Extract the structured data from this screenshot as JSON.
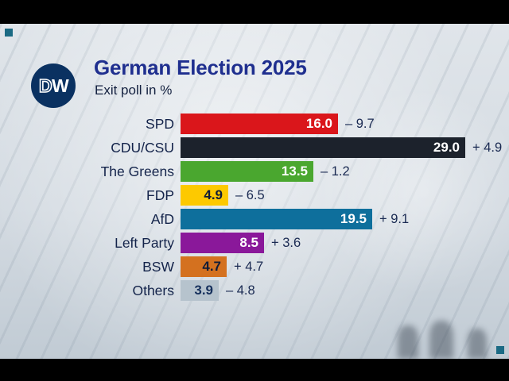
{
  "branding": {
    "logo_d": "D",
    "logo_w": "W",
    "logo_bg_color": "#0a3161"
  },
  "header": {
    "title": "German Election 2025",
    "subtitle": "Exit poll in %"
  },
  "chart_data": {
    "type": "bar",
    "orientation": "horizontal",
    "title": "German Election 2025",
    "subtitle": "Exit poll in %",
    "xlim": [
      0,
      29
    ],
    "grid": false,
    "legend_position": "none",
    "categories": [
      "SPD",
      "CDU/CSU",
      "The Greens",
      "FDP",
      "AfD",
      "Left Party",
      "BSW",
      "Others"
    ],
    "values": [
      16.0,
      29.0,
      13.5,
      4.9,
      19.5,
      8.5,
      4.7,
      3.9
    ],
    "value_labels": [
      "16.0",
      "29.0",
      "13.5",
      "4.9",
      "19.5",
      "8.5",
      "4.7",
      "3.9"
    ],
    "changes": [
      "– 9.7",
      "+ 4.9",
      "– 1.2",
      "– 6.5",
      "+ 9.1",
      "+ 3.6",
      "+ 4.7",
      "– 4.8"
    ],
    "bar_colors": [
      "#da161b",
      "#1c222c",
      "#4aa72f",
      "#fdc900",
      "#0e6f9c",
      "#8a189a",
      "#d4711f",
      "#b6c3cd"
    ],
    "value_text_colors": [
      "#ffffff",
      "#ffffff",
      "#ffffff",
      "#101c38",
      "#ffffff",
      "#ffffff",
      "#101c38",
      "#16305c"
    ]
  }
}
